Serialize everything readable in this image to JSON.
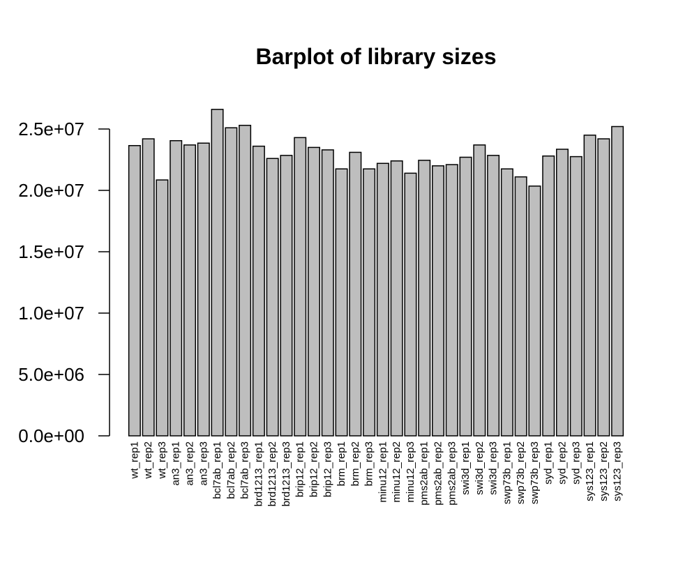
{
  "chart_data": {
    "type": "bar",
    "title": "Barplot of library sizes",
    "xlabel": "",
    "ylabel": "",
    "ylim": [
      0,
      26500000
    ],
    "yticks": [
      0,
      5000000,
      10000000,
      15000000,
      20000000,
      25000000
    ],
    "ytick_labels": [
      "0.0e+00",
      "5.0e+06",
      "1.0e+07",
      "1.5e+07",
      "2.0e+07",
      "2.5e+07"
    ],
    "grid": false,
    "legend": "none",
    "bar_color": "#bebebe",
    "categories": [
      "wt_rep1",
      "wt_rep2",
      "wt_rep3",
      "an3_rep1",
      "an3_rep2",
      "an3_rep3",
      "bcl7ab_rep1",
      "bcl7ab_rep2",
      "bcl7ab_rep3",
      "brd1213_rep1",
      "brd1213_rep2",
      "brd1213_rep3",
      "brip12_rep1",
      "brip12_rep2",
      "brip12_rep3",
      "brm_rep1",
      "brm_rep2",
      "brm_rep3",
      "minu12_rep1",
      "minu12_rep2",
      "minu12_rep3",
      "pms2ab_rep1",
      "pms2ab_rep2",
      "pms2ab_rep3",
      "swi3d_rep1",
      "swi3d_rep2",
      "swi3d_rep3",
      "swp73b_rep1",
      "swp73b_rep2",
      "swp73b_rep3",
      "syd_rep1",
      "syd_rep2",
      "syd_rep3",
      "sys123_rep1",
      "sys123_rep2",
      "sys123_rep3"
    ],
    "values": [
      23650000,
      24200000,
      20850000,
      24050000,
      23700000,
      23850000,
      26600000,
      25100000,
      25300000,
      23600000,
      22600000,
      22850000,
      24300000,
      23500000,
      23300000,
      21750000,
      23100000,
      21750000,
      22200000,
      22400000,
      21400000,
      22450000,
      22000000,
      22100000,
      22700000,
      23700000,
      22850000,
      21750000,
      21100000,
      20350000,
      22800000,
      23350000,
      22750000,
      24500000,
      24200000,
      25200000
    ]
  }
}
